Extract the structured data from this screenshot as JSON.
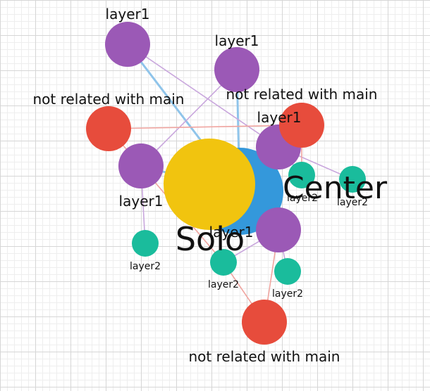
{
  "graph": {
    "colors": {
      "layer1": "#9b59b6",
      "layer2": "#1abc9c",
      "unrelated": "#e74c3c",
      "center": "#3498db",
      "solo": "#f1c40f",
      "edge_layer1": "#c9a7dd",
      "edge_main": "#8fc4ea",
      "edge_unrelated": "#f0a5a0",
      "grid_major": "#d6d6d6",
      "grid_minor": "#eeeeee"
    },
    "nodes": [
      {
        "id": "center",
        "label": "Center",
        "group": "center"
      },
      {
        "id": "solo",
        "label": "Solo",
        "group": "solo"
      },
      {
        "id": "l1a",
        "label": "layer1",
        "group": "layer1"
      },
      {
        "id": "l1b",
        "label": "layer1",
        "group": "layer1"
      },
      {
        "id": "l1c",
        "label": "layer1",
        "group": "layer1"
      },
      {
        "id": "l1d",
        "label": "layer1",
        "group": "layer1"
      },
      {
        "id": "l1e",
        "label": "layer1",
        "group": "layer1"
      },
      {
        "id": "nr1",
        "label": "not related with main",
        "group": "unrelated"
      },
      {
        "id": "nr2",
        "label": "not related with main",
        "group": "unrelated"
      },
      {
        "id": "nr3",
        "label": "not related with main",
        "group": "unrelated"
      },
      {
        "id": "l2a",
        "label": "layer2",
        "group": "layer2"
      },
      {
        "id": "l2b",
        "label": "layer2",
        "group": "layer2"
      },
      {
        "id": "l2c",
        "label": "layer2",
        "group": "layer2"
      },
      {
        "id": "l2d",
        "label": "layer2",
        "group": "layer2"
      },
      {
        "id": "l2e",
        "label": "layer2",
        "group": "layer2"
      }
    ],
    "edges": [
      {
        "from": "center",
        "to": "l1a",
        "kind": "main"
      },
      {
        "from": "center",
        "to": "l1b",
        "kind": "main"
      },
      {
        "from": "center",
        "to": "l1c",
        "kind": "main"
      },
      {
        "from": "center",
        "to": "l1d",
        "kind": "main"
      },
      {
        "from": "center",
        "to": "l1e",
        "kind": "main"
      },
      {
        "from": "l1a",
        "to": "l1c",
        "kind": "layer1"
      },
      {
        "from": "l1b",
        "to": "l1d",
        "kind": "layer1"
      },
      {
        "from": "l1c",
        "to": "l2a",
        "kind": "layer1"
      },
      {
        "from": "l1c",
        "to": "l2b",
        "kind": "layer1"
      },
      {
        "from": "l1d",
        "to": "l2c",
        "kind": "layer1"
      },
      {
        "from": "l1e",
        "to": "l2d",
        "kind": "layer1"
      },
      {
        "from": "l1e",
        "to": "l2e",
        "kind": "layer1"
      },
      {
        "from": "nr1",
        "to": "nr2",
        "kind": "unrelated"
      },
      {
        "from": "nr1",
        "to": "l1d",
        "kind": "unrelated"
      },
      {
        "from": "nr2",
        "to": "l2a",
        "kind": "unrelated"
      },
      {
        "from": "nr3",
        "to": "l1e",
        "kind": "unrelated"
      },
      {
        "from": "nr3",
        "to": "l2d",
        "kind": "unrelated"
      },
      {
        "from": "l1d",
        "to": "l2d",
        "kind": "unrelated"
      }
    ]
  }
}
